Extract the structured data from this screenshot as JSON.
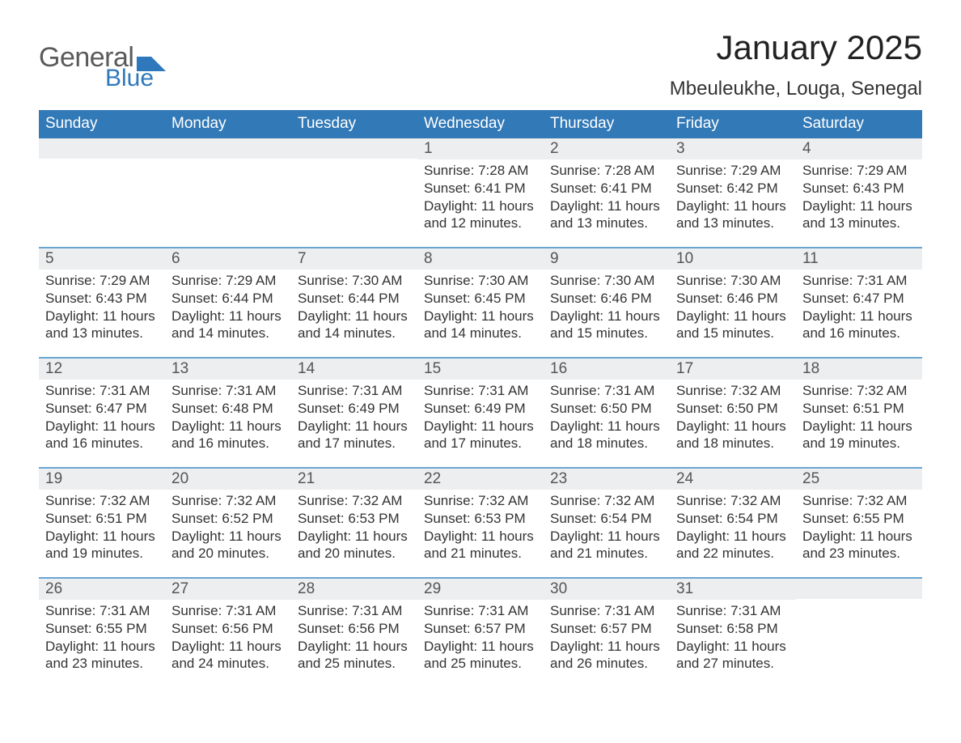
{
  "logo": {
    "word1": "General",
    "word2": "Blue"
  },
  "title": "January 2025",
  "location": "Mbeuleukhe, Louga, Senegal",
  "weekdays": [
    "Sunday",
    "Monday",
    "Tuesday",
    "Wednesday",
    "Thursday",
    "Friday",
    "Saturday"
  ],
  "colors": {
    "header_bg": "#3279b7",
    "daynum_bg": "#edeef0",
    "cell_border": "#6aa6d2",
    "logo_gray": "#5a5a5a",
    "logo_blue": "#2f78bc"
  },
  "weeks": [
    [
      {
        "day": "",
        "lines": []
      },
      {
        "day": "",
        "lines": []
      },
      {
        "day": "",
        "lines": []
      },
      {
        "day": "1",
        "lines": [
          "Sunrise: 7:28 AM",
          "Sunset: 6:41 PM",
          "Daylight: 11 hours and 12 minutes."
        ]
      },
      {
        "day": "2",
        "lines": [
          "Sunrise: 7:28 AM",
          "Sunset: 6:41 PM",
          "Daylight: 11 hours and 13 minutes."
        ]
      },
      {
        "day": "3",
        "lines": [
          "Sunrise: 7:29 AM",
          "Sunset: 6:42 PM",
          "Daylight: 11 hours and 13 minutes."
        ]
      },
      {
        "day": "4",
        "lines": [
          "Sunrise: 7:29 AM",
          "Sunset: 6:43 PM",
          "Daylight: 11 hours and 13 minutes."
        ]
      }
    ],
    [
      {
        "day": "5",
        "lines": [
          "Sunrise: 7:29 AM",
          "Sunset: 6:43 PM",
          "Daylight: 11 hours and 13 minutes."
        ]
      },
      {
        "day": "6",
        "lines": [
          "Sunrise: 7:29 AM",
          "Sunset: 6:44 PM",
          "Daylight: 11 hours and 14 minutes."
        ]
      },
      {
        "day": "7",
        "lines": [
          "Sunrise: 7:30 AM",
          "Sunset: 6:44 PM",
          "Daylight: 11 hours and 14 minutes."
        ]
      },
      {
        "day": "8",
        "lines": [
          "Sunrise: 7:30 AM",
          "Sunset: 6:45 PM",
          "Daylight: 11 hours and 14 minutes."
        ]
      },
      {
        "day": "9",
        "lines": [
          "Sunrise: 7:30 AM",
          "Sunset: 6:46 PM",
          "Daylight: 11 hours and 15 minutes."
        ]
      },
      {
        "day": "10",
        "lines": [
          "Sunrise: 7:30 AM",
          "Sunset: 6:46 PM",
          "Daylight: 11 hours and 15 minutes."
        ]
      },
      {
        "day": "11",
        "lines": [
          "Sunrise: 7:31 AM",
          "Sunset: 6:47 PM",
          "Daylight: 11 hours and 16 minutes."
        ]
      }
    ],
    [
      {
        "day": "12",
        "lines": [
          "Sunrise: 7:31 AM",
          "Sunset: 6:47 PM",
          "Daylight: 11 hours and 16 minutes."
        ]
      },
      {
        "day": "13",
        "lines": [
          "Sunrise: 7:31 AM",
          "Sunset: 6:48 PM",
          "Daylight: 11 hours and 16 minutes."
        ]
      },
      {
        "day": "14",
        "lines": [
          "Sunrise: 7:31 AM",
          "Sunset: 6:49 PM",
          "Daylight: 11 hours and 17 minutes."
        ]
      },
      {
        "day": "15",
        "lines": [
          "Sunrise: 7:31 AM",
          "Sunset: 6:49 PM",
          "Daylight: 11 hours and 17 minutes."
        ]
      },
      {
        "day": "16",
        "lines": [
          "Sunrise: 7:31 AM",
          "Sunset: 6:50 PM",
          "Daylight: 11 hours and 18 minutes."
        ]
      },
      {
        "day": "17",
        "lines": [
          "Sunrise: 7:32 AM",
          "Sunset: 6:50 PM",
          "Daylight: 11 hours and 18 minutes."
        ]
      },
      {
        "day": "18",
        "lines": [
          "Sunrise: 7:32 AM",
          "Sunset: 6:51 PM",
          "Daylight: 11 hours and 19 minutes."
        ]
      }
    ],
    [
      {
        "day": "19",
        "lines": [
          "Sunrise: 7:32 AM",
          "Sunset: 6:51 PM",
          "Daylight: 11 hours and 19 minutes."
        ]
      },
      {
        "day": "20",
        "lines": [
          "Sunrise: 7:32 AM",
          "Sunset: 6:52 PM",
          "Daylight: 11 hours and 20 minutes."
        ]
      },
      {
        "day": "21",
        "lines": [
          "Sunrise: 7:32 AM",
          "Sunset: 6:53 PM",
          "Daylight: 11 hours and 20 minutes."
        ]
      },
      {
        "day": "22",
        "lines": [
          "Sunrise: 7:32 AM",
          "Sunset: 6:53 PM",
          "Daylight: 11 hours and 21 minutes."
        ]
      },
      {
        "day": "23",
        "lines": [
          "Sunrise: 7:32 AM",
          "Sunset: 6:54 PM",
          "Daylight: 11 hours and 21 minutes."
        ]
      },
      {
        "day": "24",
        "lines": [
          "Sunrise: 7:32 AM",
          "Sunset: 6:54 PM",
          "Daylight: 11 hours and 22 minutes."
        ]
      },
      {
        "day": "25",
        "lines": [
          "Sunrise: 7:32 AM",
          "Sunset: 6:55 PM",
          "Daylight: 11 hours and 23 minutes."
        ]
      }
    ],
    [
      {
        "day": "26",
        "lines": [
          "Sunrise: 7:31 AM",
          "Sunset: 6:55 PM",
          "Daylight: 11 hours and 23 minutes."
        ]
      },
      {
        "day": "27",
        "lines": [
          "Sunrise: 7:31 AM",
          "Sunset: 6:56 PM",
          "Daylight: 11 hours and 24 minutes."
        ]
      },
      {
        "day": "28",
        "lines": [
          "Sunrise: 7:31 AM",
          "Sunset: 6:56 PM",
          "Daylight: 11 hours and 25 minutes."
        ]
      },
      {
        "day": "29",
        "lines": [
          "Sunrise: 7:31 AM",
          "Sunset: 6:57 PM",
          "Daylight: 11 hours and 25 minutes."
        ]
      },
      {
        "day": "30",
        "lines": [
          "Sunrise: 7:31 AM",
          "Sunset: 6:57 PM",
          "Daylight: 11 hours and 26 minutes."
        ]
      },
      {
        "day": "31",
        "lines": [
          "Sunrise: 7:31 AM",
          "Sunset: 6:58 PM",
          "Daylight: 11 hours and 27 minutes."
        ]
      },
      {
        "day": "",
        "lines": []
      }
    ]
  ]
}
